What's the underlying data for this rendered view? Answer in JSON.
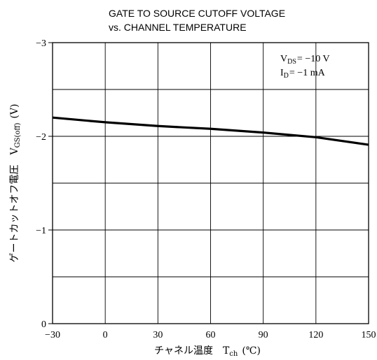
{
  "chart_data": {
    "type": "line",
    "title_line1": "GATE TO SOURCE CUTOFF VOLTAGE",
    "title_line2": "vs. CHANNEL TEMPERATURE",
    "xlabel": "チャネル温度　T",
    "xlabel_sub": "ch",
    "xlabel_unit": "(℃)",
    "ylabel": "ゲートカットオフ電圧　V",
    "ylabel_sub": "GS(off)",
    "ylabel_unit": "(V)",
    "xlim": [
      -30,
      150
    ],
    "ylim": [
      0,
      -3
    ],
    "x_ticks": [
      -30,
      0,
      30,
      60,
      90,
      120,
      150
    ],
    "y_ticks": [
      0,
      -1,
      -2,
      -3
    ],
    "y_tick_labels": [
      "0",
      "−1",
      "−2",
      "−3"
    ],
    "x_tick_labels": [
      "−30",
      "0",
      "30",
      "60",
      "90",
      "120",
      "150"
    ],
    "y_gridlines": [
      -0.5,
      -1,
      -1.5,
      -2,
      -2.5,
      -3
    ],
    "grid": true,
    "annotation": {
      "line1_a": "V",
      "line1_sub": "DS",
      "line1_b": "= −10  V",
      "line2_a": "I",
      "line2_sub": "D",
      "line2_b": "= −1  mA"
    },
    "series": [
      {
        "x": [
          -30,
          0,
          30,
          60,
          90,
          120,
          150
        ],
        "y": [
          -2.2,
          -2.15,
          -2.11,
          -2.08,
          -2.04,
          -1.99,
          -1.91
        ]
      }
    ]
  }
}
